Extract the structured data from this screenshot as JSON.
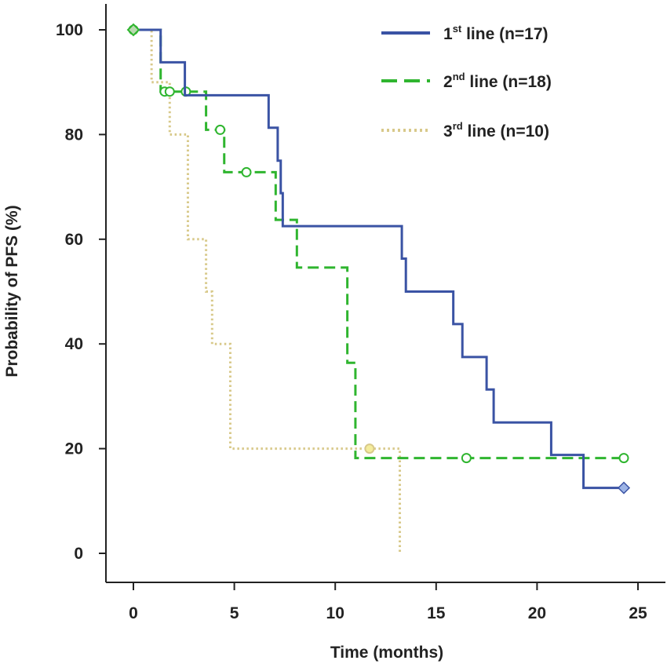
{
  "chart_data": {
    "type": "line",
    "subtype": "kaplan-meier step",
    "title": "",
    "xlabel": "Time (months)",
    "ylabel": "Probability of PFS (%)",
    "xlim": [
      0,
      25
    ],
    "ylim": [
      0,
      100
    ],
    "xticks": [
      "0",
      "5",
      "10",
      "15",
      "20",
      "25"
    ],
    "yticks": [
      "0",
      "20",
      "40",
      "60",
      "80",
      "100"
    ],
    "grid": false,
    "legend_position": "top-right",
    "series": [
      {
        "name": "1st line (n=17)",
        "legend_main": "1",
        "legend_sup": "st",
        "legend_rest": " line (n=17)",
        "color": "#3a53a4",
        "dash": "solid",
        "x": [
          0,
          1.35,
          2.55,
          6.7,
          7.15,
          7.3,
          7.4,
          13.3,
          13.5,
          15.85,
          16.3,
          17.5,
          17.85,
          20.7,
          22.3,
          24.3
        ],
        "y": [
          100,
          93.8,
          87.5,
          81.3,
          75.0,
          68.8,
          62.5,
          56.3,
          50.0,
          43.8,
          37.5,
          31.3,
          25.0,
          18.8,
          12.5,
          12.5
        ],
        "censor_x": [
          24.3
        ],
        "censor_y": [
          12.5
        ],
        "marker": "diamond"
      },
      {
        "name": "2nd line (n=18)",
        "legend_main": "2",
        "legend_sup": "nd",
        "legend_rest": " line (n=18)",
        "color": "#2fb52f",
        "dash": "dashed",
        "x": [
          0,
          1.35,
          3.6,
          4.5,
          7.05,
          8.1,
          10.6,
          11.0,
          24.3
        ],
        "y": [
          100,
          88.2,
          80.9,
          72.8,
          63.7,
          54.6,
          36.4,
          18.2,
          18.2
        ],
        "censor_x": [
          0,
          1.55,
          1.8,
          2.6,
          4.3,
          5.6,
          16.5,
          24.3
        ],
        "censor_y": [
          100,
          88.2,
          88.2,
          88.2,
          80.9,
          72.8,
          18.2,
          18.2
        ],
        "marker": "circle"
      },
      {
        "name": "3rd line (n=10)",
        "legend_main": "3",
        "legend_sup": "rd",
        "legend_rest": " line (n=10)",
        "color": "#d8c98a",
        "dash": "dotted",
        "x": [
          0,
          0.9,
          1.8,
          2.7,
          3.6,
          3.9,
          4.8,
          13.2
        ],
        "y": [
          100,
          90,
          80,
          60,
          50,
          40,
          20,
          0
        ],
        "censor_x": [
          11.7
        ],
        "censor_y": [
          20
        ],
        "marker": "circle"
      }
    ]
  }
}
